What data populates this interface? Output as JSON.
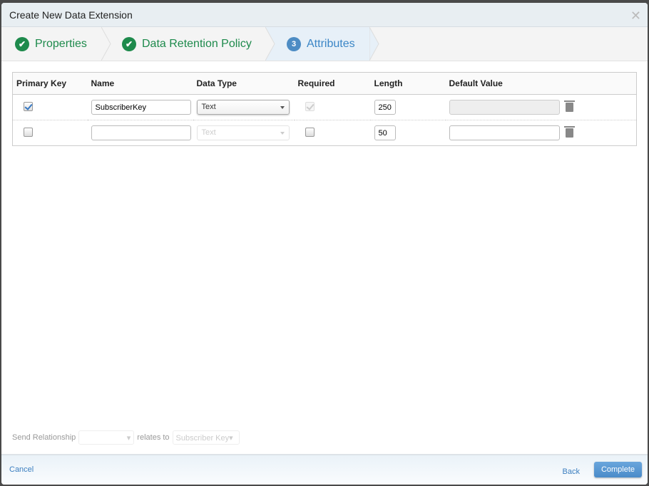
{
  "dialog": {
    "title": "Create New Data Extension",
    "close_icon": "close-icon"
  },
  "steps": [
    {
      "label": "Properties",
      "state": "done"
    },
    {
      "label": "Data Retention Policy",
      "state": "done"
    },
    {
      "number": "3",
      "label": "Attributes",
      "state": "current"
    }
  ],
  "table": {
    "headers": [
      "Primary Key",
      "Name",
      "Data Type",
      "Required",
      "Length",
      "Default Value"
    ],
    "rows": [
      {
        "primary_key": true,
        "name": "SubscriberKey",
        "data_type": "Text",
        "required": true,
        "required_disabled": true,
        "length": "250",
        "default_value": "",
        "default_disabled": true
      },
      {
        "primary_key": false,
        "name": "",
        "data_type": "Text",
        "data_type_disabled": true,
        "required": false,
        "length": "50",
        "default_value": ""
      }
    ]
  },
  "relationship": {
    "label": "Send Relationship",
    "value": "",
    "relates_to": "relates to",
    "target": "Subscriber Key"
  },
  "footer": {
    "cancel": "Cancel",
    "back": "Back",
    "complete": "Complete"
  },
  "colors": {
    "done": "#1e8a4c",
    "current": "#3b86c6",
    "button": "#4a8bc9"
  }
}
